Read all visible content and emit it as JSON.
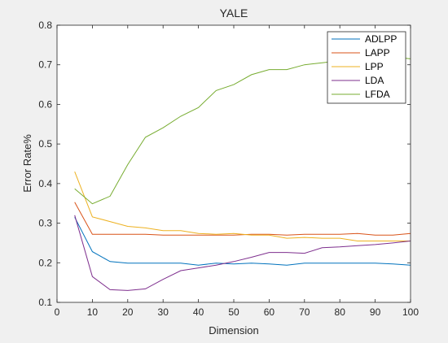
{
  "chart_data": {
    "type": "line",
    "title": "YALE",
    "xlabel": "Dimension",
    "ylabel": "Error Rate%",
    "xlim": [
      0,
      100
    ],
    "ylim": [
      0.1,
      0.8
    ],
    "xticks": [
      "0",
      "10",
      "20",
      "30",
      "40",
      "50",
      "60",
      "70",
      "80",
      "90",
      "100"
    ],
    "yticks": [
      "0.1",
      "0.2",
      "0.3",
      "0.4",
      "0.5",
      "0.6",
      "0.7",
      "0.8"
    ],
    "grid": false,
    "legend_position": "top-right",
    "x": [
      5,
      10,
      15,
      20,
      25,
      30,
      35,
      40,
      45,
      50,
      55,
      60,
      65,
      70,
      75,
      80,
      85,
      90,
      95,
      100
    ],
    "series": [
      {
        "name": "ADLPP",
        "color": "#0072BD",
        "values": [
          0.315,
          0.228,
          0.203,
          0.199,
          0.199,
          0.199,
          0.199,
          0.194,
          0.199,
          0.197,
          0.199,
          0.197,
          0.194,
          0.199,
          0.199,
          0.199,
          0.199,
          0.199,
          0.197,
          0.194
        ]
      },
      {
        "name": "LAPP",
        "color": "#D95319",
        "values": [
          0.353,
          0.272,
          0.272,
          0.272,
          0.272,
          0.27,
          0.27,
          0.27,
          0.27,
          0.27,
          0.272,
          0.272,
          0.27,
          0.272,
          0.272,
          0.272,
          0.274,
          0.27,
          0.27,
          0.274
        ]
      },
      {
        "name": "LPP",
        "color": "#EDB120",
        "values": [
          0.43,
          0.316,
          0.304,
          0.292,
          0.288,
          0.281,
          0.281,
          0.274,
          0.272,
          0.274,
          0.27,
          0.27,
          0.262,
          0.264,
          0.262,
          0.262,
          0.255,
          0.255,
          0.255,
          0.255
        ]
      },
      {
        "name": "LDA",
        "color": "#7E2F8E",
        "values": [
          0.32,
          0.165,
          0.132,
          0.13,
          0.134,
          0.158,
          0.18,
          0.187,
          0.194,
          0.203,
          0.214,
          0.226,
          0.226,
          0.224,
          0.238,
          0.24,
          0.243,
          0.246,
          0.25,
          0.255
        ]
      },
      {
        "name": "LFDA",
        "color": "#77AC30",
        "values": [
          0.387,
          0.349,
          0.368,
          0.448,
          0.517,
          0.541,
          0.57,
          0.592,
          0.635,
          0.65,
          0.675,
          0.688,
          0.688,
          0.7,
          0.705,
          0.71,
          0.715,
          0.72,
          0.72,
          0.715
        ]
      }
    ]
  },
  "colors": {
    "figure_background": "#f0f0f0",
    "axes_background": "#ffffff",
    "axis_color": "#262626"
  }
}
